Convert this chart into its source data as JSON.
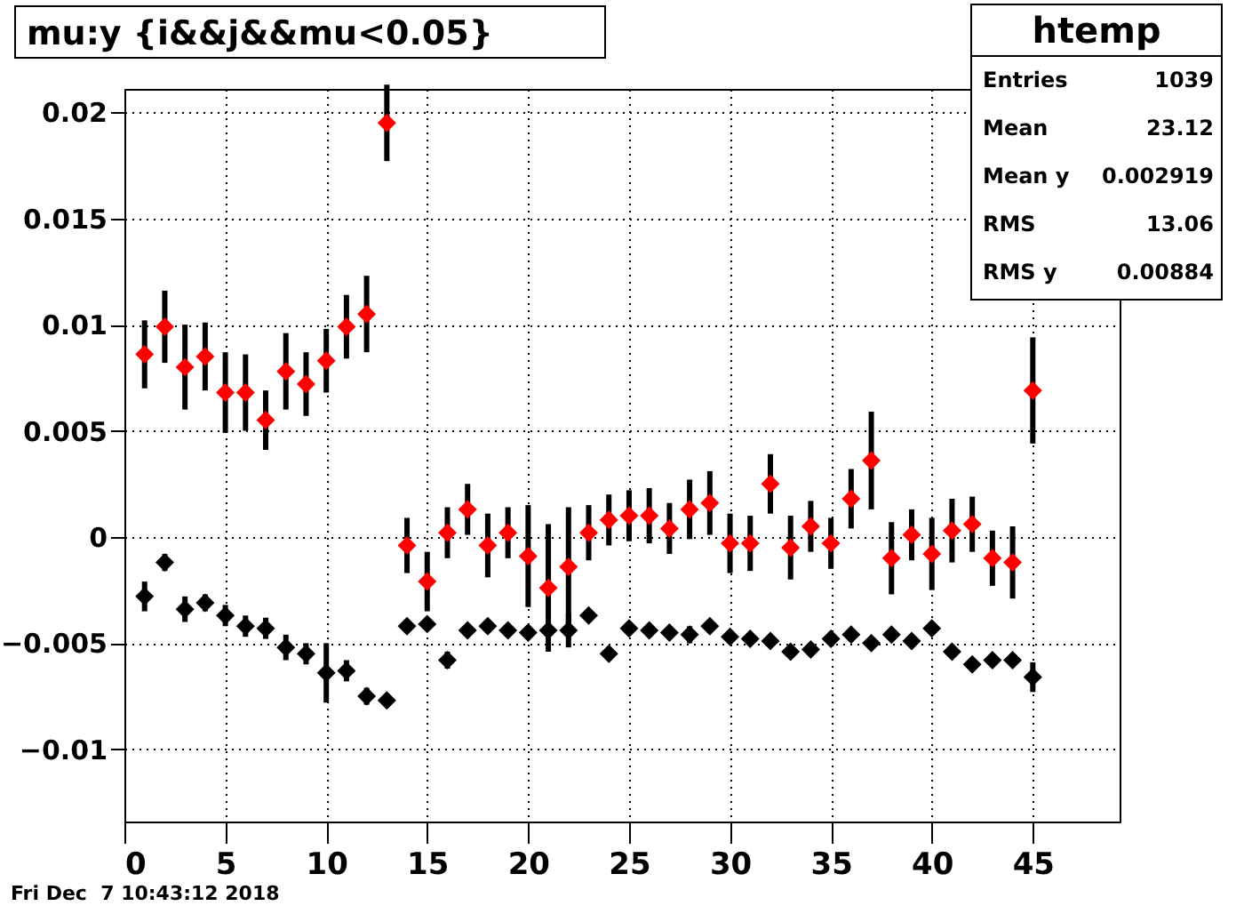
{
  "chart_data": {
    "type": "scatter",
    "title": "mu:y {i&&j&&mu<0.05}",
    "annotations": [
      "htemp",
      "Entries 1039",
      "Mean 23.12",
      "Mean y 0.002919",
      "RMS 13.06",
      "RMS y 0.00884",
      "Fri Dec  7 10:43:12 2018"
    ],
    "x": [
      1,
      2,
      3,
      4,
      5,
      6,
      7,
      8,
      9,
      10,
      11,
      12,
      13,
      14,
      15,
      16,
      17,
      18,
      19,
      20,
      21,
      22,
      23,
      24,
      25,
      26,
      27,
      28,
      29,
      30,
      31,
      32,
      33,
      34,
      35,
      36,
      37,
      38,
      39,
      40,
      41,
      42,
      43,
      44,
      45
    ],
    "series": [
      {
        "color": "#ff0000",
        "values": [
          0.0086,
          0.0099,
          0.008,
          0.0085,
          0.0068,
          0.0068,
          0.0055,
          0.0078,
          0.0072,
          0.0083,
          0.0099,
          0.0105,
          0.0195,
          -0.0004,
          -0.0021,
          0.0002,
          0.0013,
          -0.0004,
          0.0002,
          -0.0009,
          -0.0024,
          -0.0014,
          0.0002,
          0.0008,
          0.001,
          0.001,
          0.0004,
          0.0013,
          0.0016,
          -0.0003,
          -0.0003,
          0.0025,
          -0.0005,
          0.0005,
          -0.0003,
          0.0018,
          0.0036,
          -0.001,
          0.0001,
          -0.0008,
          0.0003,
          0.0006,
          -0.001,
          -0.0012,
          0.0069
        ],
        "errors": [
          0.0016,
          0.0017,
          0.002,
          0.0016,
          0.0019,
          0.0018,
          0.0014,
          0.0018,
          0.0015,
          0.0015,
          0.0015,
          0.0018,
          0.0018,
          0.0013,
          0.0014,
          0.0012,
          0.0012,
          0.0015,
          0.0012,
          0.0024,
          0.003,
          0.0028,
          0.0013,
          0.0012,
          0.0012,
          0.0013,
          0.0012,
          0.0014,
          0.0015,
          0.0014,
          0.0013,
          0.0014,
          0.0015,
          0.0012,
          0.0012,
          0.0014,
          0.0023,
          0.0017,
          0.0012,
          0.0017,
          0.0015,
          0.0013,
          0.0013,
          0.0017,
          0.0025
        ]
      },
      {
        "color": "#000000",
        "values": [
          -0.0028,
          -0.0012,
          -0.0034,
          -0.0031,
          -0.0037,
          -0.0042,
          -0.0043,
          -0.0052,
          -0.0055,
          -0.0064,
          -0.0063,
          -0.0075,
          -0.0077,
          -0.0042,
          -0.0041,
          -0.0058,
          -0.0044,
          -0.0042,
          -0.0044,
          -0.0045,
          -0.0044,
          -0.0044,
          -0.0037,
          -0.0055,
          -0.0043,
          -0.0044,
          -0.0045,
          -0.0046,
          -0.0042,
          -0.0047,
          -0.0048,
          -0.0049,
          -0.0054,
          -0.0053,
          -0.0048,
          -0.0046,
          -0.005,
          -0.0046,
          -0.0049,
          -0.0043,
          -0.0054,
          -0.006,
          -0.0058,
          -0.0058,
          -0.0066
        ],
        "errors": [
          0.0007,
          0.0004,
          0.0006,
          0.0004,
          0.0005,
          0.0005,
          0.0005,
          0.0006,
          0.0005,
          0.0014,
          0.0005,
          0.0004,
          0.0003,
          0.0002,
          0.0002,
          0.0004,
          0.0002,
          0.0003,
          0.0003,
          0.0003,
          0.0003,
          0.0008,
          0.0003,
          0.0003,
          0.0003,
          0.0003,
          0.0003,
          0.0004,
          0.0003,
          0.0002,
          0.0002,
          0.0002,
          0.0003,
          0.0003,
          0.0003,
          0.0002,
          0.0003,
          0.0003,
          0.0003,
          0.0003,
          0.0002,
          0.0003,
          0.0003,
          0.0003,
          0.0007
        ]
      }
    ],
    "xlim": [
      0,
      49.3
    ],
    "xticks": [
      0,
      5,
      10,
      15,
      20,
      25,
      30,
      35,
      40,
      45
    ],
    "ylim": [
      -0.0134,
      0.0211
    ],
    "yticks": [
      {
        "value": -0.01,
        "label": "−0.01"
      },
      {
        "value": -0.005,
        "label": "−0.005"
      },
      0,
      0.005,
      0.01,
      0.015,
      0.02
    ],
    "grid": true,
    "marker": "diamond"
  }
}
